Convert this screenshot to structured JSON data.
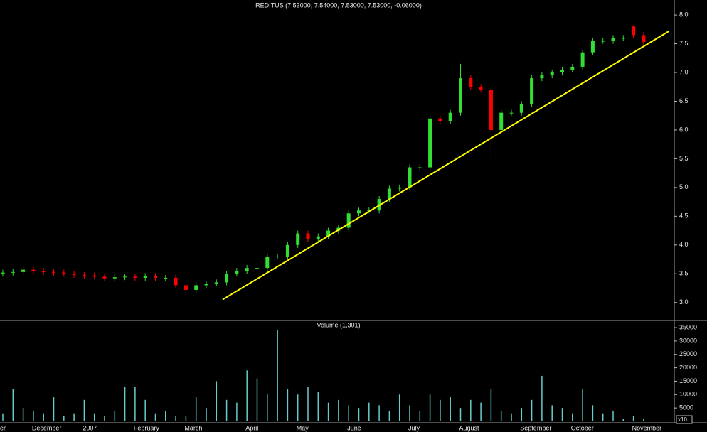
{
  "chart_data": [
    {
      "type": "candlestick",
      "title": "REDITUS (7.53000, 7.54000, 7.53000, 7.53000, -0.06000)",
      "categories": [
        "er",
        null,
        null,
        "December",
        null,
        null,
        null,
        null,
        "2007",
        null,
        null,
        null,
        null,
        "February",
        null,
        null,
        null,
        null,
        "March",
        null,
        null,
        null,
        null,
        null,
        "April",
        null,
        null,
        null,
        null,
        "May",
        null,
        null,
        null,
        null,
        "June",
        null,
        null,
        null,
        null,
        null,
        "July",
        null,
        null,
        null,
        null,
        "August",
        null,
        null,
        null,
        null,
        null,
        "September",
        null,
        null,
        null,
        null,
        "October",
        null,
        null,
        null,
        null,
        null,
        "November",
        null
      ],
      "open": [
        3.5,
        3.52,
        3.53,
        3.57,
        3.55,
        3.53,
        3.52,
        3.5,
        3.48,
        3.47,
        3.45,
        3.42,
        3.44,
        3.45,
        3.43,
        3.46,
        3.43,
        3.43,
        3.3,
        3.22,
        3.3,
        3.33,
        3.35,
        3.5,
        3.55,
        3.6,
        3.6,
        3.8,
        3.8,
        4.0,
        4.2,
        4.1,
        4.15,
        4.25,
        4.3,
        4.55,
        4.6,
        4.6,
        4.8,
        4.98,
        5.0,
        5.35,
        5.35,
        6.2,
        6.15,
        6.3,
        6.9,
        6.75,
        6.7,
        6.0,
        6.3,
        6.3,
        6.45,
        6.9,
        6.95,
        7.0,
        7.05,
        7.1,
        7.35,
        7.55,
        7.55,
        7.6,
        7.8,
        7.65
      ],
      "high": [
        3.57,
        3.58,
        3.62,
        3.62,
        3.6,
        3.58,
        3.57,
        3.55,
        3.53,
        3.52,
        3.5,
        3.49,
        3.5,
        3.5,
        3.51,
        3.51,
        3.48,
        3.48,
        3.35,
        3.35,
        3.38,
        3.4,
        3.55,
        3.6,
        3.65,
        3.65,
        3.85,
        3.85,
        4.05,
        4.25,
        4.25,
        4.2,
        4.3,
        4.35,
        4.6,
        4.65,
        4.65,
        4.85,
        5.03,
        5.05,
        5.4,
        5.4,
        6.25,
        6.25,
        6.35,
        7.15,
        6.95,
        6.8,
        6.75,
        6.35,
        6.35,
        6.5,
        6.95,
        7.0,
        7.05,
        7.1,
        7.15,
        7.4,
        7.6,
        7.6,
        7.65,
        7.65,
        7.82,
        7.7
      ],
      "low": [
        3.45,
        3.47,
        3.48,
        3.5,
        3.48,
        3.47,
        3.45,
        3.43,
        3.42,
        3.4,
        3.37,
        3.37,
        3.39,
        3.38,
        3.38,
        3.38,
        3.38,
        3.25,
        3.15,
        3.17,
        3.25,
        3.28,
        3.3,
        3.45,
        3.5,
        3.55,
        3.55,
        3.75,
        3.75,
        3.95,
        4.05,
        4.05,
        4.1,
        4.2,
        4.25,
        4.5,
        4.55,
        4.55,
        4.75,
        4.93,
        4.95,
        5.3,
        5.3,
        6.1,
        6.1,
        6.25,
        6.7,
        6.65,
        5.55,
        5.95,
        6.25,
        6.25,
        6.4,
        6.85,
        6.9,
        6.95,
        7.0,
        7.05,
        7.3,
        7.5,
        7.5,
        7.55,
        7.6,
        7.48
      ],
      "close": [
        3.52,
        3.53,
        3.57,
        3.55,
        3.53,
        3.52,
        3.5,
        3.48,
        3.47,
        3.45,
        3.42,
        3.44,
        3.45,
        3.43,
        3.46,
        3.43,
        3.43,
        3.3,
        3.22,
        3.3,
        3.33,
        3.35,
        3.5,
        3.55,
        3.6,
        3.6,
        3.8,
        3.8,
        4.0,
        4.2,
        4.1,
        4.15,
        4.25,
        4.3,
        4.55,
        4.6,
        4.6,
        4.8,
        4.98,
        5.0,
        5.35,
        5.35,
        6.2,
        6.15,
        6.3,
        6.9,
        6.75,
        6.7,
        6.0,
        6.3,
        6.3,
        6.45,
        6.9,
        6.95,
        7.0,
        7.05,
        7.1,
        7.35,
        7.55,
        7.55,
        7.6,
        7.6,
        7.65,
        7.53
      ],
      "up_color": "#33dd33",
      "down_color": "#ff0000",
      "trendline": {
        "color": "#ffff00",
        "x": [
          21.6,
          65.5
        ],
        "values": [
          3.05,
          7.72
        ]
      },
      "ylim": [
        2.7,
        8.1
      ],
      "yticks": [
        {
          "value": 3,
          "label": "3.0"
        },
        3.5,
        {
          "value": 4,
          "label": "4.0"
        },
        4.5,
        {
          "value": 5,
          "label": "5.0"
        },
        5.5,
        {
          "value": 6,
          "label": "6.0"
        },
        6.5,
        {
          "value": 7,
          "label": "7.0"
        },
        7.5,
        {
          "value": 8,
          "label": "8.0"
        }
      ]
    },
    {
      "type": "bar",
      "title": "Volume (1,301)",
      "values": [
        3000,
        12000,
        5000,
        4000,
        3000,
        9000,
        2000,
        3000,
        8000,
        3000,
        2000,
        4000,
        13000,
        13000,
        8000,
        3000,
        4000,
        2000,
        2000,
        9000,
        5000,
        15000,
        8000,
        7000,
        19000,
        16000,
        10000,
        34000,
        12000,
        10000,
        13000,
        11000,
        7000,
        8000,
        6000,
        5000,
        7000,
        6000,
        4000,
        10000,
        6000,
        4000,
        10000,
        8000,
        9000,
        5000,
        8000,
        7000,
        12000,
        4000,
        3000,
        5000,
        8000,
        17000,
        6000,
        5000,
        3000,
        12000,
        6000,
        3000,
        4000,
        1000,
        2000,
        1000
      ],
      "color": "#66cccc",
      "multiplier_label": "x10",
      "ylim": [
        0,
        37400
      ],
      "yticks": [
        5000,
        10000,
        15000,
        20000,
        25000,
        30000,
        35000
      ]
    }
  ]
}
